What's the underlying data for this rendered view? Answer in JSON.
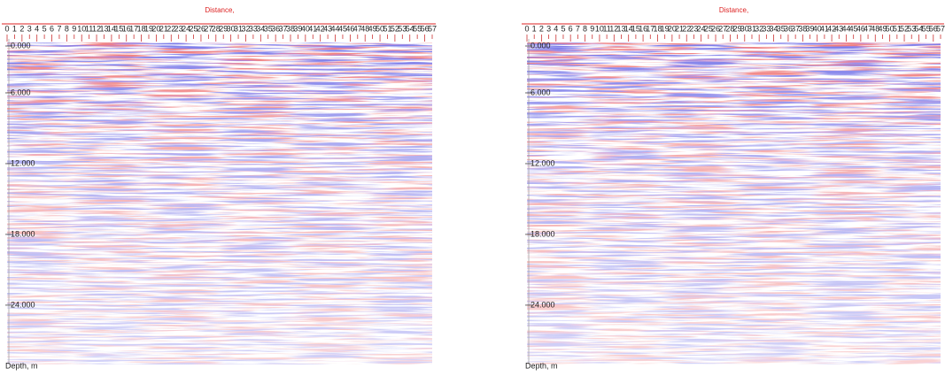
{
  "panels": [
    {
      "title": "Distance,",
      "depth_label": "Depth, m",
      "depth_ticks": [
        {
          "value": 0,
          "label": "0.000"
        },
        {
          "value": 6,
          "label": "6.000"
        },
        {
          "value": 12,
          "label": "12.000"
        },
        {
          "value": 18,
          "label": "18.000"
        },
        {
          "value": 24,
          "label": "24.000"
        }
      ],
      "distance_ticks": [
        "0",
        "1",
        "2",
        "3",
        "4",
        "5",
        "6",
        "7",
        "8",
        "9",
        "10",
        "11",
        "12",
        "13",
        "14",
        "15",
        "16",
        "17",
        "18",
        "19",
        "20",
        "21",
        "22",
        "23",
        "24",
        "25",
        "26",
        "27",
        "28",
        "29",
        "30",
        "31",
        "32",
        "33",
        "34",
        "35",
        "36",
        "37",
        "38",
        "39",
        "40",
        "41",
        "42",
        "43",
        "44",
        "45",
        "46",
        "47",
        "48",
        "49",
        "50",
        "51",
        "52",
        "53",
        "54",
        "55",
        "56",
        "57"
      ]
    },
    {
      "title": "Distance,",
      "depth_label": "Depth, m",
      "depth_ticks": [
        {
          "value": 0,
          "label": "0.000"
        },
        {
          "value": 6,
          "label": "6.000"
        },
        {
          "value": 12,
          "label": "12.000"
        },
        {
          "value": 18,
          "label": "18.000"
        },
        {
          "value": 24,
          "label": "24.000"
        }
      ],
      "distance_ticks": [
        "0",
        "1",
        "2",
        "3",
        "4",
        "5",
        "6",
        "7",
        "8",
        "9",
        "10",
        "11",
        "12",
        "13",
        "14",
        "15",
        "16",
        "17",
        "18",
        "19",
        "20",
        "21",
        "22",
        "23",
        "24",
        "25",
        "26",
        "27",
        "28",
        "29",
        "30",
        "31",
        "32",
        "33",
        "34",
        "35",
        "36",
        "37",
        "38",
        "39",
        "40",
        "41",
        "42",
        "43",
        "44",
        "45",
        "46",
        "47",
        "48",
        "49",
        "50",
        "51",
        "52",
        "53",
        "54",
        "55",
        "56",
        "57"
      ]
    }
  ]
}
